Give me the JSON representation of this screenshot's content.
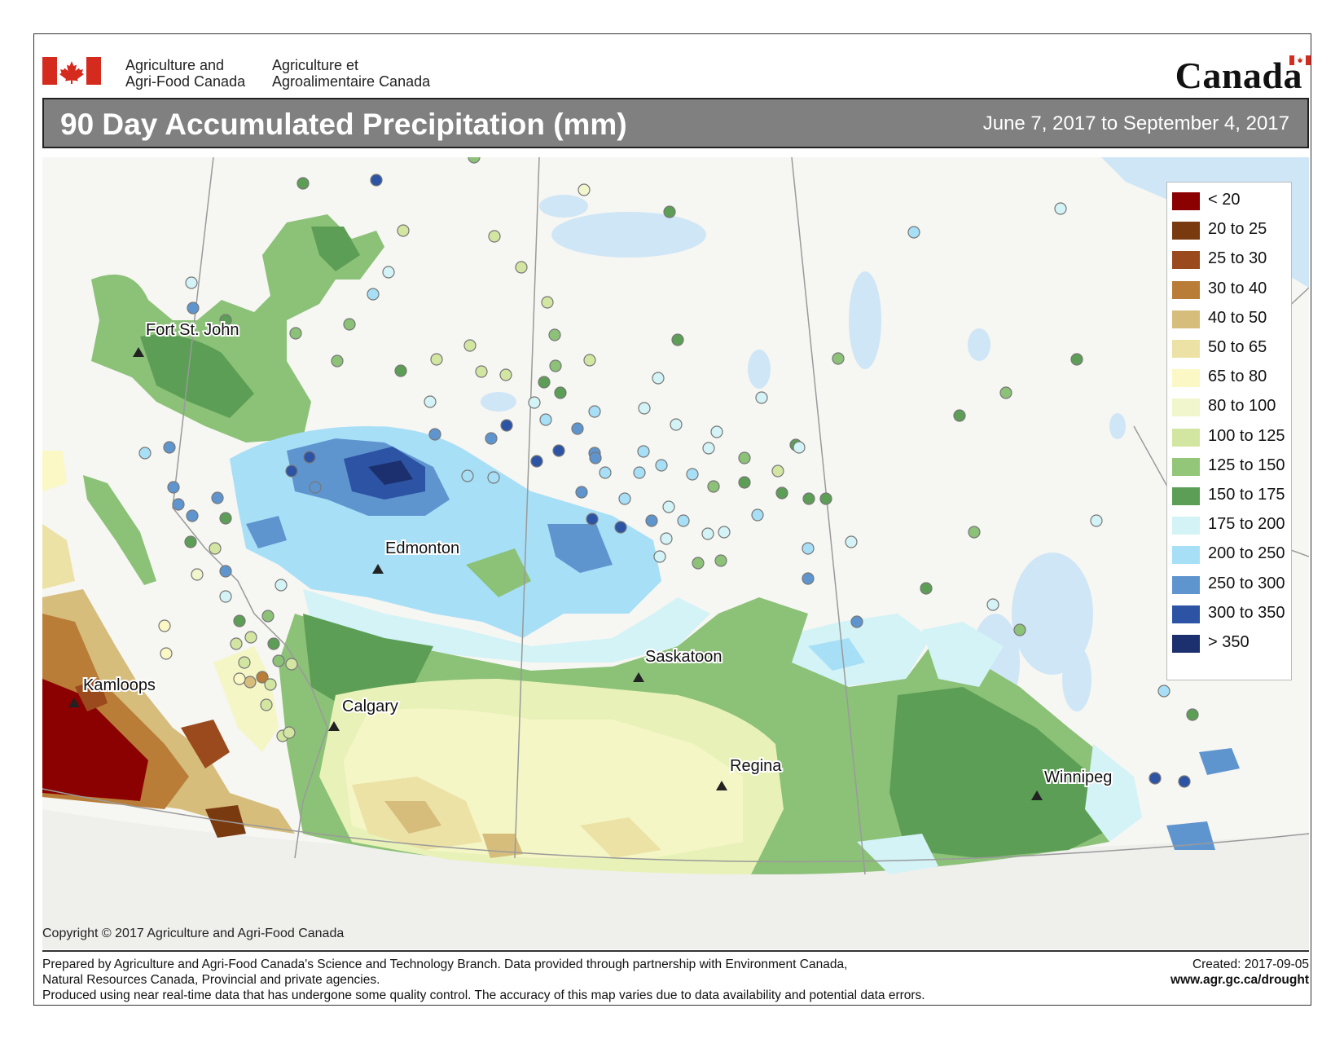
{
  "header": {
    "dept_en_line1": "Agriculture and",
    "dept_en_line2": "Agri-Food Canada",
    "dept_fr_line1": "Agriculture et",
    "dept_fr_line2": "Agroalimentaire Canada",
    "wordmark": "Canada",
    "flag_red": "#d52b1e"
  },
  "title": "90 Day Accumulated Precipitation (mm)",
  "date_range": "June 7, 2017 to September 4, 2017",
  "map": {
    "cities": [
      "Fort St. John",
      "Edmonton",
      "Saskatoon",
      "Calgary",
      "Kamloops",
      "Regina",
      "Winnipeg"
    ]
  },
  "legend": [
    {
      "label": "< 20",
      "color": "#8b0000"
    },
    {
      "label": "20 to 25",
      "color": "#7a3a10"
    },
    {
      "label": "25 to 30",
      "color": "#9a4a1c"
    },
    {
      "label": "30 to 40",
      "color": "#b97d38"
    },
    {
      "label": "40 to 50",
      "color": "#d6bd7c"
    },
    {
      "label": "50 to 65",
      "color": "#ece2a6"
    },
    {
      "label": "65 to 80",
      "color": "#fbf8c6"
    },
    {
      "label": "80 to 100",
      "color": "#f2f6cc"
    },
    {
      "label": "100 to 125",
      "color": "#d2e6a1"
    },
    {
      "label": "125 to 150",
      "color": "#94c67a"
    },
    {
      "label": "150 to 175",
      "color": "#5c9e55"
    },
    {
      "label": "175 to 200",
      "color": "#d3f3f7"
    },
    {
      "label": "200 to 250",
      "color": "#a7dff7"
    },
    {
      "label": "250 to 300",
      "color": "#5f95cf"
    },
    {
      "label": "300 to 350",
      "color": "#2d54a4"
    },
    {
      "label": "> 350",
      "color": "#1c2f6e"
    }
  ],
  "copyright": "Copyright © 2017 Agriculture and Agri-Food Canada",
  "footer": {
    "line1": "Prepared by Agriculture and Agri-Food Canada's Science and Technology Branch. Data provided through partnership with Environment Canada,",
    "line2": "Natural Resources Canada, Provincial and private agencies.",
    "line3": "Produced using near real-time data that has undergone some quality control. The accuracy of this map varies due to data availability and potential data errors.",
    "created": "Created: 2017-09-05",
    "url": "www.agr.gc.ca/drought"
  }
}
